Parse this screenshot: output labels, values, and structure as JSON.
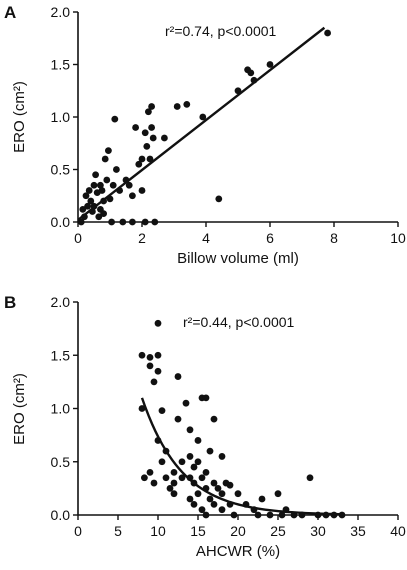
{
  "chart_data": [
    {
      "type": "scatter",
      "panel": "A",
      "xlabel": "Billow volume (ml)",
      "ylabel": "ERO (cm²)",
      "xlim": [
        0,
        10
      ],
      "ylim": [
        0,
        2.0
      ],
      "x_ticks": [
        "0",
        "2",
        "4",
        "6",
        "8",
        "10"
      ],
      "y_ticks": [
        "0.0",
        "0.5",
        "1.0",
        "1.5",
        "2.0"
      ],
      "annotation": "r²=0.74, p<0.0001",
      "fit": {
        "kind": "linear",
        "points": [
          [
            0,
            0.02
          ],
          [
            7.7,
            1.85
          ]
        ]
      },
      "points": [
        [
          0.1,
          0.0
        ],
        [
          0.15,
          0.12
        ],
        [
          0.2,
          0.05
        ],
        [
          0.25,
          0.25
        ],
        [
          0.3,
          0.15
        ],
        [
          0.35,
          0.3
        ],
        [
          0.4,
          0.2
        ],
        [
          0.45,
          0.1
        ],
        [
          0.5,
          0.35
        ],
        [
          0.5,
          0.15
        ],
        [
          0.55,
          0.45
        ],
        [
          0.6,
          0.28
        ],
        [
          0.65,
          0.05
        ],
        [
          0.7,
          0.35
        ],
        [
          0.7,
          0.12
        ],
        [
          0.75,
          0.3
        ],
        [
          0.8,
          0.2
        ],
        [
          0.8,
          0.08
        ],
        [
          0.85,
          0.6
        ],
        [
          0.9,
          0.4
        ],
        [
          0.95,
          0.68
        ],
        [
          1.0,
          0.22
        ],
        [
          1.05,
          0.0
        ],
        [
          1.1,
          0.35
        ],
        [
          1.15,
          0.98
        ],
        [
          1.2,
          0.5
        ],
        [
          1.3,
          0.3
        ],
        [
          1.4,
          0.0
        ],
        [
          1.5,
          0.4
        ],
        [
          1.6,
          0.35
        ],
        [
          1.7,
          0.25
        ],
        [
          1.8,
          0.9
        ],
        [
          1.9,
          0.55
        ],
        [
          2.0,
          0.6
        ],
        [
          2.0,
          0.3
        ],
        [
          2.1,
          0.85
        ],
        [
          2.15,
          0.72
        ],
        [
          2.2,
          1.05
        ],
        [
          2.25,
          0.6
        ],
        [
          2.3,
          1.1
        ],
        [
          2.3,
          0.9
        ],
        [
          2.35,
          0.8
        ],
        [
          2.1,
          0.0
        ],
        [
          1.7,
          0.0
        ],
        [
          2.4,
          0.0
        ],
        [
          2.7,
          0.8
        ],
        [
          3.1,
          1.1
        ],
        [
          3.4,
          1.12
        ],
        [
          3.9,
          1.0
        ],
        [
          4.4,
          0.22
        ],
        [
          5.0,
          1.25
        ],
        [
          5.3,
          1.45
        ],
        [
          5.4,
          1.42
        ],
        [
          5.5,
          1.35
        ],
        [
          6.0,
          1.5
        ],
        [
          7.8,
          1.8
        ]
      ]
    },
    {
      "type": "scatter",
      "panel": "B",
      "xlabel": "AHCWR (%)",
      "ylabel": "ERO (cm²)",
      "xlim": [
        0,
        40
      ],
      "ylim": [
        0,
        2.0
      ],
      "x_ticks": [
        "0",
        "5",
        "10",
        "15",
        "20",
        "25",
        "30",
        "35",
        "40"
      ],
      "y_ticks": [
        "0.0",
        "0.5",
        "1.0",
        "1.5",
        "2.0"
      ],
      "annotation": "r²=0.44, p<0.0001",
      "fit": {
        "kind": "exponential",
        "x_range": [
          8,
          33
        ],
        "a": 1.1,
        "x0": 8,
        "k": 0.2
      },
      "points": [
        [
          8,
          1.5
        ],
        [
          8,
          1.0
        ],
        [
          8.3,
          0.35
        ],
        [
          9,
          0.4
        ],
        [
          9,
          1.48
        ],
        [
          9,
          1.4
        ],
        [
          9.5,
          1.25
        ],
        [
          9.5,
          0.3
        ],
        [
          10,
          1.8
        ],
        [
          10,
          1.5
        ],
        [
          10,
          1.35
        ],
        [
          10,
          0.7
        ],
        [
          10.5,
          0.98
        ],
        [
          10.5,
          0.5
        ],
        [
          11,
          0.35
        ],
        [
          11,
          0.6
        ],
        [
          11.5,
          0.25
        ],
        [
          12,
          0.2
        ],
        [
          12,
          0.4
        ],
        [
          12,
          0.3
        ],
        [
          12.5,
          1.3
        ],
        [
          12.5,
          0.9
        ],
        [
          13,
          0.5
        ],
        [
          13,
          0.35
        ],
        [
          13.5,
          1.05
        ],
        [
          14,
          0.8
        ],
        [
          14,
          0.55
        ],
        [
          14,
          0.35
        ],
        [
          14,
          0.15
        ],
        [
          14.5,
          0.45
        ],
        [
          14.5,
          0.3
        ],
        [
          14.5,
          0.1
        ],
        [
          15,
          0.7
        ],
        [
          15,
          0.5
        ],
        [
          15,
          0.2
        ],
        [
          15.5,
          1.1
        ],
        [
          15.5,
          0.35
        ],
        [
          15.5,
          0.05
        ],
        [
          16,
          1.1
        ],
        [
          16,
          0.4
        ],
        [
          16,
          0.25
        ],
        [
          16,
          0.0
        ],
        [
          16.5,
          0.15
        ],
        [
          16.5,
          0.6
        ],
        [
          17,
          0.9
        ],
        [
          17,
          0.3
        ],
        [
          17,
          0.1
        ],
        [
          17.5,
          0.25
        ],
        [
          18,
          0.55
        ],
        [
          18,
          0.2
        ],
        [
          18,
          0.05
        ],
        [
          18.5,
          0.3
        ],
        [
          19,
          0.1
        ],
        [
          19,
          0.28
        ],
        [
          19.5,
          0.0
        ],
        [
          20,
          0.2
        ],
        [
          21,
          0.1
        ],
        [
          22,
          0.05
        ],
        [
          22.5,
          0.0
        ],
        [
          23,
          0.15
        ],
        [
          24,
          0.0
        ],
        [
          25,
          0.2
        ],
        [
          25.5,
          0.0
        ],
        [
          26,
          0.05
        ],
        [
          27,
          0.0
        ],
        [
          28,
          0.0
        ],
        [
          29,
          0.35
        ],
        [
          30,
          0.0
        ],
        [
          31,
          0.0
        ],
        [
          32,
          0.0
        ],
        [
          33,
          0.0
        ]
      ]
    }
  ]
}
